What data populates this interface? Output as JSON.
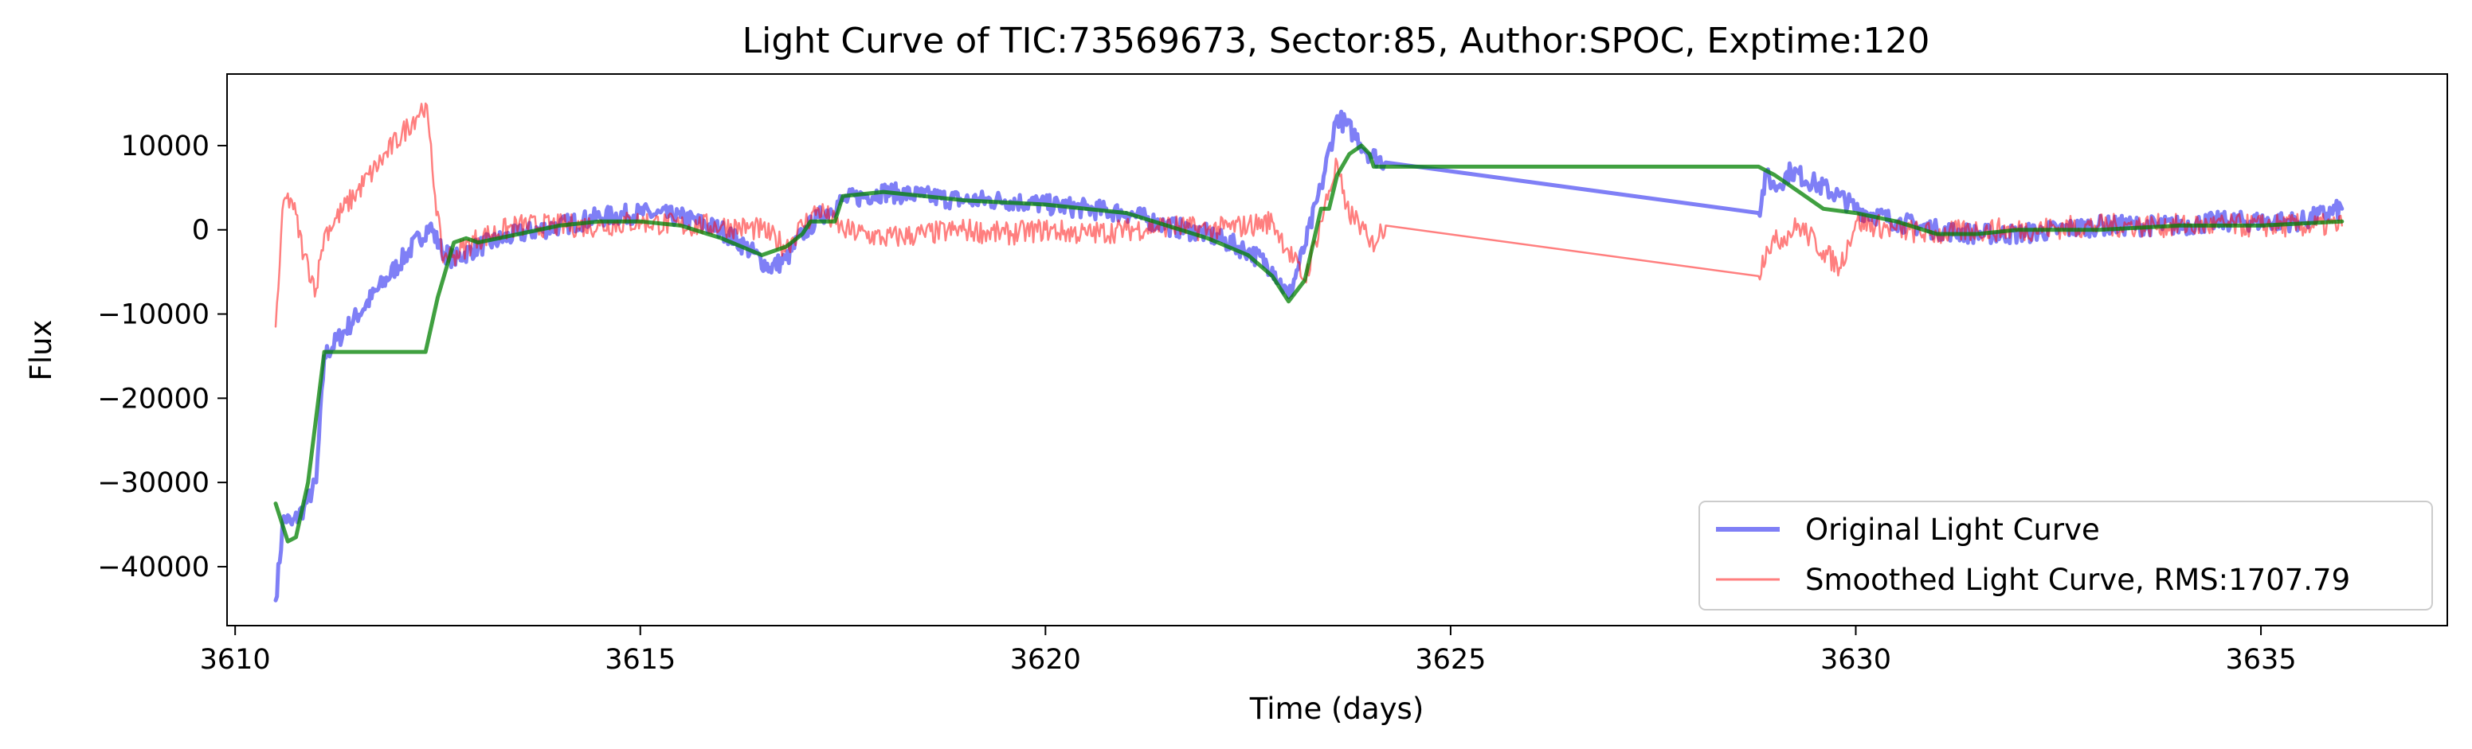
{
  "chart_data": {
    "type": "line",
    "title": "Light Curve of TIC:73569673, Sector:85, Author:SPOC, Exptime:120",
    "xlabel": "Time (days)",
    "ylabel": "Flux",
    "xlim": [
      3609.9,
      3637.3
    ],
    "ylim": [
      -47000,
      18500
    ],
    "xticks": [
      3610,
      3615,
      3620,
      3625,
      3630,
      3635
    ],
    "xtick_labels": [
      "3610",
      "3615",
      "3620",
      "3625",
      "3630",
      "3635"
    ],
    "yticks": [
      10000,
      0,
      -10000,
      -20000,
      -30000,
      -40000
    ],
    "ytick_labels": [
      "10000",
      "0",
      "−10000",
      "−20000",
      "−30000",
      "−40000"
    ],
    "grid": false,
    "legend_position": "lower-right",
    "series": [
      {
        "name": "Original Light Curve",
        "color": "#0000ee",
        "style": "thick-noisy",
        "x": [
          3610.5,
          3610.6,
          3610.7,
          3610.85,
          3611.0,
          3611.1,
          3612.4,
          3612.55,
          3612.7,
          3613.0,
          3613.5,
          3614.0,
          3614.5,
          3615.0,
          3615.5,
          3616.0,
          3616.3,
          3616.6,
          3616.8,
          3617.0,
          3617.2,
          3617.5,
          3618.0,
          3618.5,
          3619.0,
          3619.5,
          3620.0,
          3620.5,
          3621.0,
          3621.5,
          3622.0,
          3622.5,
          3622.8,
          3623.0,
          3623.2,
          3623.4,
          3623.6,
          3623.8,
          3624.0,
          3624.2,
          3628.8,
          3628.9,
          3629.0,
          3629.2,
          3629.5,
          3629.8,
          3630.0,
          3630.5,
          3631.0,
          3631.5,
          3632.0,
          3632.5,
          3633.0,
          3633.5,
          3634.0,
          3634.5,
          3635.0,
          3635.5,
          3636.0
        ],
        "y": [
          -44000,
          -34000,
          -35000,
          -33000,
          -30000,
          -15000,
          500,
          -2500,
          -3500,
          -2000,
          -500,
          500,
          1500,
          2000,
          1500,
          0,
          -2000,
          -4500,
          -3500,
          -500,
          1500,
          3500,
          4500,
          4000,
          3500,
          3500,
          3000,
          2500,
          2000,
          500,
          -500,
          -2500,
          -4500,
          -8000,
          -2000,
          5000,
          13500,
          11500,
          9000,
          8000,
          2000,
          6500,
          5000,
          7000,
          5500,
          4000,
          2500,
          1000,
          0,
          -500,
          -500,
          0,
          500,
          500,
          500,
          1000,
          1000,
          1000,
          2500
        ],
        "noise": 1200
      },
      {
        "name": "Smoothed Light Curve, RMS:1707.79",
        "color": "#ff0000",
        "style": "thin-noisy",
        "x": [
          3610.5,
          3610.6,
          3610.7,
          3610.85,
          3611.0,
          3611.05,
          3611.1,
          3612.35,
          3612.55,
          3612.7,
          3613.0,
          3613.5,
          3614.0,
          3614.5,
          3615.0,
          3615.5,
          3616.0,
          3616.5,
          3616.8,
          3617.0,
          3617.2,
          3617.5,
          3618.0,
          3618.5,
          3619.0,
          3619.5,
          3620.0,
          3620.5,
          3621.0,
          3621.5,
          3622.0,
          3622.5,
          3622.8,
          3623.0,
          3623.2,
          3623.4,
          3623.6,
          3623.7,
          3623.8,
          3623.9,
          3624.0,
          3624.2,
          3628.8,
          3628.9,
          3629.0,
          3629.3,
          3629.6,
          3629.8,
          3630.0,
          3630.5,
          3631.0,
          3631.5,
          3632.0,
          3633.0,
          3634.0,
          3635.0,
          3636.0
        ],
        "y": [
          -11500,
          3500,
          3500,
          -3000,
          -7000,
          -3500,
          -500,
          15000,
          -3000,
          -3000,
          -1000,
          500,
          500,
          500,
          1000,
          500,
          500,
          0,
          -2000,
          500,
          2500,
          0,
          -1000,
          -500,
          0,
          -500,
          0,
          -500,
          0,
          500,
          0,
          500,
          1000,
          -2500,
          -6000,
          1000,
          8000,
          2500,
          1500,
          500,
          -2000,
          500,
          -5500,
          -2000,
          -1500,
          500,
          -2500,
          -4500,
          1000,
          0,
          -500,
          0,
          0,
          500,
          500,
          500,
          500
        ],
        "noise": 1400
      },
      {
        "name": "",
        "color": "#008000",
        "style": "thick-smooth",
        "x": [
          3610.5,
          3610.65,
          3610.75,
          3610.9,
          3611.1,
          3612.35,
          3612.5,
          3612.7,
          3612.85,
          3613.0,
          3613.5,
          3614.0,
          3614.5,
          3615.0,
          3615.5,
          3616.0,
          3616.5,
          3616.8,
          3617.0,
          3617.1,
          3617.4,
          3617.5,
          3618.0,
          3619.0,
          3620.0,
          3620.5,
          3621.0,
          3621.5,
          3622.0,
          3622.5,
          3622.8,
          3623.0,
          3623.2,
          3623.4,
          3623.5,
          3623.6,
          3623.75,
          3623.9,
          3624.0,
          3624.05,
          3628.8,
          3629.0,
          3629.3,
          3629.6,
          3630.0,
          3630.5,
          3631.0,
          3631.5,
          3632.0,
          3633.0,
          3634.0,
          3635.0,
          3636.0
        ],
        "y": [
          -32500,
          -37000,
          -36500,
          -30000,
          -14500,
          -14500,
          -8000,
          -1500,
          -1000,
          -1500,
          -500,
          500,
          1000,
          1000,
          500,
          -1000,
          -3000,
          -2000,
          -500,
          1000,
          1000,
          4000,
          4500,
          3500,
          3000,
          2500,
          2000,
          500,
          -1000,
          -3000,
          -5500,
          -8500,
          -6000,
          2500,
          2500,
          6500,
          9000,
          10000,
          9000,
          7500,
          7500,
          6500,
          4500,
          2500,
          2000,
          1000,
          -500,
          -500,
          0,
          0,
          500,
          500,
          1000
        ],
        "noise": 0
      }
    ]
  }
}
